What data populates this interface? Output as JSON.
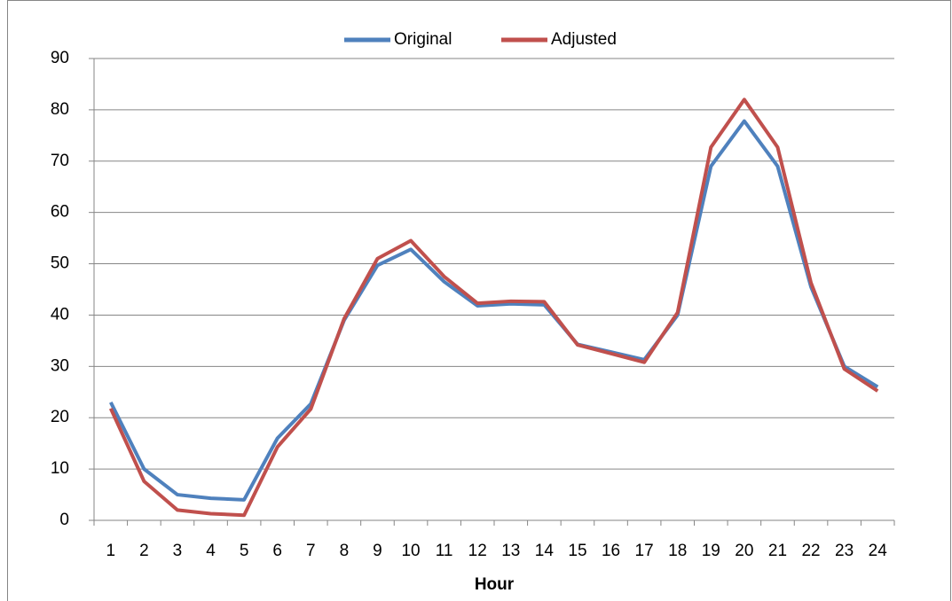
{
  "chart_data": {
    "type": "line",
    "x_label": "Hour",
    "categories": [
      "1",
      "2",
      "3",
      "4",
      "5",
      "6",
      "7",
      "8",
      "9",
      "10",
      "11",
      "12",
      "13",
      "14",
      "15",
      "16",
      "17",
      "18",
      "19",
      "20",
      "21",
      "22",
      "23",
      "24"
    ],
    "series": [
      {
        "name": "Original",
        "color": "#4f81bd",
        "values": [
          23,
          10,
          5,
          4.3,
          4,
          16,
          22.7,
          39,
          49.7,
          52.8,
          46.5,
          41.8,
          42.2,
          42,
          34.3,
          32.8,
          31.3,
          40,
          69,
          77.8,
          69,
          45.5,
          30,
          26
        ]
      },
      {
        "name": "Adjusted",
        "color": "#c0504d",
        "values": [
          21.8,
          7.6,
          2,
          1.3,
          1,
          14.3,
          21.7,
          39.3,
          51,
          54.5,
          47.5,
          42.3,
          42.7,
          42.6,
          34.2,
          32.5,
          30.8,
          40.5,
          72.7,
          82,
          72.7,
          46.3,
          29.5,
          25.2
        ]
      }
    ],
    "ylim": [
      0,
      90
    ],
    "yticks": [
      0,
      10,
      20,
      30,
      40,
      50,
      60,
      70,
      80,
      90
    ],
    "grid": true,
    "legend": "top"
  }
}
